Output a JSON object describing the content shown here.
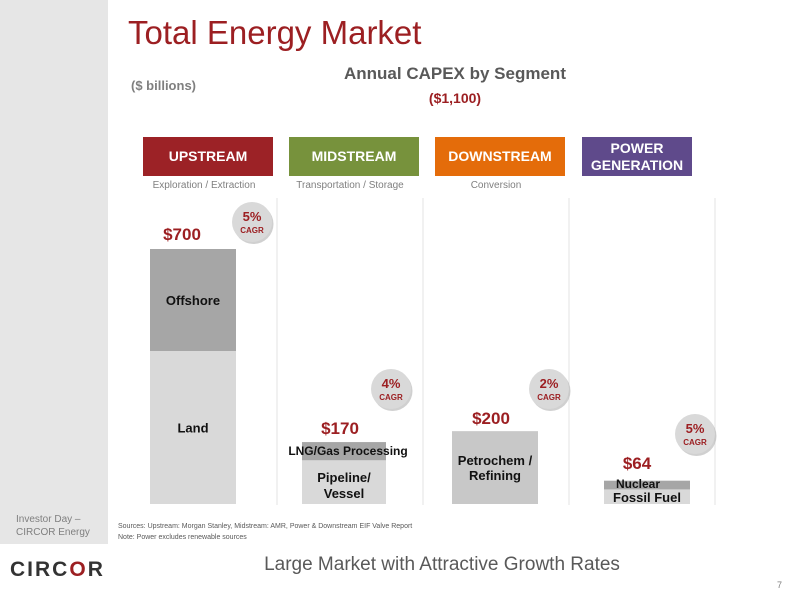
{
  "header": {
    "title": "Total Energy Market",
    "units": "($ billions)",
    "subtitle": "Annual CAPEX by Segment",
    "total": "($1,100)"
  },
  "segments": [
    {
      "label": "UPSTREAM",
      "caption": "Exploration / Extraction",
      "color": "#9c2226"
    },
    {
      "label": "MIDSTREAM",
      "caption": "Transportation / Storage",
      "color": "#77923c"
    },
    {
      "label": "DOWNSTREAM",
      "caption": "Conversion",
      "color": "#e46c0a"
    },
    {
      "label": "POWER GENERATION",
      "caption": "",
      "color": "#5f4a8b"
    }
  ],
  "chart_data": {
    "type": "bar",
    "stacked": true,
    "categories": [
      "UPSTREAM",
      "MIDSTREAM",
      "DOWNSTREAM",
      "POWER GENERATION"
    ],
    "totals": [
      700,
      170,
      200,
      64
    ],
    "total_labels": [
      "$700",
      "$170",
      "$200",
      "$64"
    ],
    "cagr_values": [
      "5%",
      "4%",
      "2%",
      "5%"
    ],
    "cagr_unit": "CAGR",
    "series": [
      {
        "name": "Land",
        "category": "UPSTREAM",
        "value": 420,
        "color": "#d9d9d9",
        "label": "Land"
      },
      {
        "name": "Offshore",
        "category": "UPSTREAM",
        "value": 280,
        "color": "#a6a6a6",
        "label": "Offshore"
      },
      {
        "name": "Pipeline/ Vessel",
        "category": "MIDSTREAM",
        "value": 120,
        "color": "#d9d9d9",
        "label": "Pipeline/ Vessel"
      },
      {
        "name": "LNG/Gas Processing",
        "category": "MIDSTREAM",
        "value": 50,
        "color": "#a6a6a6",
        "label": "LNG/Gas Processing"
      },
      {
        "name": "Petrochem / Refining",
        "category": "DOWNSTREAM",
        "value": 200,
        "color": "#c8c8c8",
        "label": "Petrochem / Refining"
      },
      {
        "name": "Fossil Fuel",
        "category": "POWER GENERATION",
        "value": 40,
        "color": "#d9d9d9",
        "label": "Fossil Fuel"
      },
      {
        "name": "Nuclear",
        "category": "POWER GENERATION",
        "value": 24,
        "color": "#a6a6a6",
        "label": "Nuclear"
      }
    ],
    "ylim": [
      0,
      700
    ],
    "grid": false
  },
  "footer": {
    "sources": "Sources: Upstream: Morgan Stanley, Midstream: AMR, Power & Downstream EIF Valve Report",
    "note": "Note:  Power excludes renewable sources",
    "tagline": "Large Market with Attractive Growth Rates",
    "page_number": "7",
    "event_line1": "Investor Day –",
    "event_line2": "CIRCOR Energy",
    "logo_part1": "CIRC",
    "logo_part2": "O",
    "logo_part3": "R"
  }
}
